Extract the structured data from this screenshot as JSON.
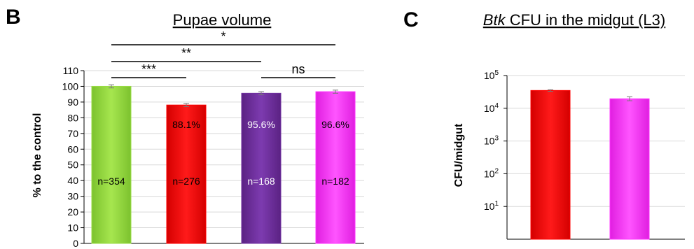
{
  "chart_data": [
    {
      "type": "bar",
      "panel_label": "B",
      "title": "Pupae volume",
      "ylabel": "% to the control",
      "ylim": [
        0,
        110
      ],
      "yticks": [
        0,
        10,
        20,
        30,
        40,
        50,
        60,
        70,
        80,
        90,
        100,
        110
      ],
      "bars": [
        {
          "value": 100.0,
          "err": 1.0,
          "color": "#99dd44",
          "percent_label": "",
          "n_label": "n=354",
          "text_color": "#000000"
        },
        {
          "value": 88.1,
          "err": 1.0,
          "color": "#ff0000",
          "percent_label": "88.1%",
          "n_label": "n=276",
          "text_color": "#000000"
        },
        {
          "value": 95.6,
          "err": 1.0,
          "color": "#7030a0",
          "percent_label": "95.6%",
          "n_label": "n=168",
          "text_color": "#ffffff"
        },
        {
          "value": 96.6,
          "err": 1.0,
          "color": "#ff33ff",
          "percent_label": "96.6%",
          "n_label": "n=182",
          "text_color": "#000000"
        }
      ],
      "significance": [
        {
          "from": 0,
          "to": 1,
          "label": "***"
        },
        {
          "from": 2,
          "to": 3,
          "label": "ns"
        },
        {
          "from": 0,
          "to": 2,
          "label": "**"
        },
        {
          "from": 0,
          "to": 3,
          "label": "*"
        }
      ],
      "grid": true
    },
    {
      "type": "bar",
      "panel_label": "C",
      "title_italic": "Btk",
      "title_rest": " CFU in the midgut (L3)",
      "ylabel": "CFU/midgut",
      "yscale": "log",
      "ylim": [
        1,
        100000
      ],
      "ytick_exponents": [
        1,
        2,
        3,
        4,
        5
      ],
      "ytick_base": "10",
      "bars": [
        {
          "value": 35000,
          "err_low": 33000,
          "err_high": 37000,
          "color": "#ff0000"
        },
        {
          "value": 19500,
          "err_low": 17000,
          "err_high": 22500,
          "color": "#ff33ff"
        }
      ],
      "grid": true
    }
  ]
}
